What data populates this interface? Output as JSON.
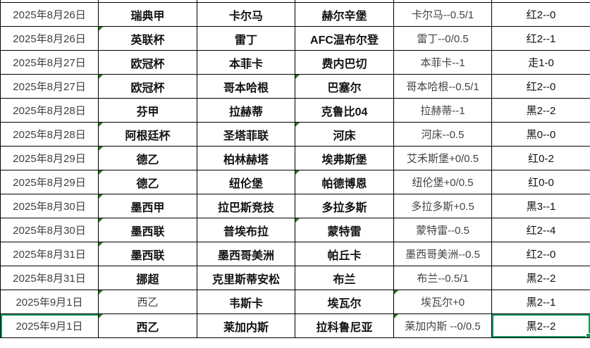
{
  "table": {
    "selection_color": "#13975F",
    "triangle_color": "#1F7A1F",
    "grid_color": "#000000",
    "columns": [
      "date",
      "league",
      "home",
      "away",
      "handicap",
      "result"
    ],
    "rows": [
      {
        "date": "2025年8月26日",
        "league": "瑞典甲",
        "home": "卡尔马",
        "away": "赫尔辛堡",
        "handicap": "卡尔马--0.5/1",
        "result": "红2--0"
      },
      {
        "date": "2025年8月26日",
        "league": "英联杯",
        "home": "雷丁",
        "away": "AFC温布尔登",
        "handicap": "雷丁--0/0.5",
        "result": "红2--1"
      },
      {
        "date": "2025年8月27日",
        "league": "欧冠杯",
        "home": "本菲卡",
        "away": "费内巴切",
        "handicap": "本菲卡--1",
        "result": "走1-0"
      },
      {
        "date": "2025年8月27日",
        "league": "欧冠杯",
        "home": "哥本哈根",
        "away": "巴塞尔",
        "handicap": "哥本哈根--0.5/1",
        "result": "红2--0"
      },
      {
        "date": "2025年8月28日",
        "league": "芬甲",
        "home": "拉赫蒂",
        "away": "克鲁比04",
        "handicap": "拉赫蒂--1",
        "result": "黑2--2"
      },
      {
        "date": "2025年8月28日",
        "league": "阿根廷杯",
        "home": "圣塔菲联",
        "away": "河床",
        "handicap": "河床--0.5",
        "result": "黑0--0"
      },
      {
        "date": "2025年8月29日",
        "league": "德乙",
        "home": "柏林赫塔",
        "away": "埃弗斯堡",
        "handicap": "艾禾斯堡+0/0.5",
        "result": "红0-2"
      },
      {
        "date": "2025年8月29日",
        "league": "德乙",
        "home": "纽伦堡",
        "away": "帕德博恩",
        "handicap": "纽伦堡+0/0.5",
        "result": "红0-0"
      },
      {
        "date": "2025年8月30日",
        "league": "墨西甲",
        "home": "拉巴斯竞技",
        "away": "多拉多斯",
        "handicap": "多拉多斯+0.5",
        "result": "黑3--1"
      },
      {
        "date": "2025年8月30日",
        "league": "墨西联",
        "home": "普埃布拉",
        "away": "蒙特雷",
        "handicap": "蒙特雷--0.5",
        "result": "红2--4"
      },
      {
        "date": "2025年8月31日",
        "league": "墨西联",
        "home": "墨西哥美洲",
        "away": "帕丘卡",
        "handicap": "墨西哥美洲--0.5",
        "result": "红2--0"
      },
      {
        "date": "2025年8月31日",
        "league": "挪超",
        "home": "克里斯蒂安松",
        "away": "布兰",
        "handicap": "布兰--0.5/1",
        "result": "黑2--2"
      },
      {
        "date": "2025年9月1日",
        "league": "西乙",
        "home": "韦斯卡",
        "away": "埃瓦尔",
        "handicap": "埃瓦尔+0",
        "result": "黑2--1",
        "league_regular": true
      },
      {
        "date": "2025年9月1日",
        "league": "西乙",
        "home": "莱加内斯",
        "away": "拉科鲁尼亚",
        "handicap": "莱加内斯 --0/0.5",
        "result": "黑2--2",
        "selected": true
      }
    ],
    "error_triangles": {
      "league": [
        2,
        4,
        6,
        7,
        8,
        9,
        10,
        11,
        13,
        14
      ],
      "away": [
        4,
        6,
        8,
        10
      ],
      "handicap": [
        13,
        14
      ]
    }
  }
}
